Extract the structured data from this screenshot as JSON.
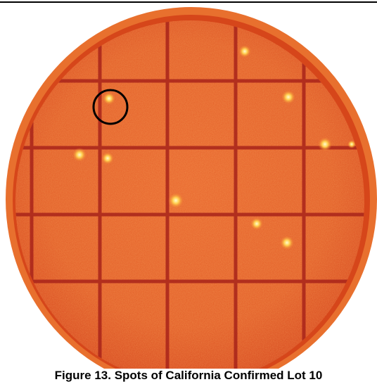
{
  "caption": "Figure 13. Spots of California Confirmed Lot 10"
}
